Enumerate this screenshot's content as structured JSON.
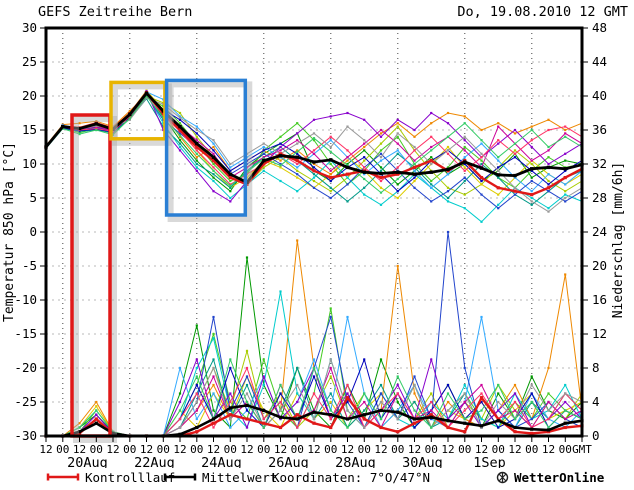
{
  "header": {
    "title": "GEFS Zeitreihe Bern",
    "datetime": "Do, 19.08.2010 12 GMT"
  },
  "footer": {
    "control_label": "Kontrolllauf",
    "mean_label": "Mittelwert",
    "coords_label": "Koordinaten: 7°O/47°N",
    "brand": "WetterOnline"
  },
  "chart_data": {
    "type": "line",
    "title": "GEFS Zeitreihe Bern",
    "subtitle": "Do, 19.08.2010 12 GMT",
    "ylabel_left": "Temperatur 850 hPa [°C]",
    "ylabel_right": "Niederschlag [mm/6h]",
    "ylim_left": [
      -30,
      30
    ],
    "ylim_right": [
      0,
      48
    ],
    "ytick_step_left": 5,
    "ytick_step_right": 4,
    "grid": "on",
    "legend_position": "bottom",
    "x_tick_labels": [
      "12",
      "00",
      "12",
      "00",
      "12",
      "00",
      "12",
      "00",
      "12",
      "00",
      "12",
      "00",
      "12",
      "00",
      "12",
      "00",
      "12",
      "00",
      "12",
      "00",
      "12",
      "00",
      "12",
      "00",
      "12",
      "00",
      "12",
      "00",
      "12",
      "00",
      "12",
      "00",
      "GMT"
    ],
    "day_labels": [
      {
        "label": "20Aug",
        "i": 2
      },
      {
        "label": "22Aug",
        "i": 6
      },
      {
        "label": "24Aug",
        "i": 10
      },
      {
        "label": "26Aug",
        "i": 14
      },
      {
        "label": "28Aug",
        "i": 18
      },
      {
        "label": "30Aug",
        "i": 22
      },
      {
        "label": "1Sep",
        "i": 26
      }
    ],
    "grid_v_idx": [
      1,
      5,
      9,
      13,
      17,
      21,
      25,
      29
    ],
    "colors": {
      "mean": "#000000",
      "control": "#e01818",
      "grid_h": "#b8b8b8",
      "grid_v": "#444444"
    },
    "highlight_boxes": [
      {
        "name": "highlight-box-red",
        "color": "#e01818",
        "x0": 1.55,
        "x1": 3.82,
        "t0": 17.2,
        "t1": -30
      },
      {
        "name": "highlight-box-yellow",
        "color": "#e8b400",
        "x0": 3.88,
        "x1": 7.1,
        "t0": 22.0,
        "t1": 13.7
      },
      {
        "name": "highlight-box-blue",
        "color": "#2a7fd4",
        "x0": 7.2,
        "x1": 11.9,
        "t0": 22.3,
        "t1": 2.5
      }
    ],
    "mean": {
      "temp": [
        12.5,
        15.5,
        15.2,
        15.9,
        15.1,
        17.3,
        20.4,
        17.8,
        15.5,
        13.0,
        11.0,
        8.5,
        7.3,
        10.5,
        11.2,
        11.0,
        10.3,
        10.6,
        9.5,
        8.8,
        8.6,
        8.8,
        8.5,
        8.8,
        9.2,
        10.3,
        9.4,
        8.4,
        8.3,
        9.3,
        9.5,
        9.3,
        9.9
      ],
      "precip": [
        0,
        0,
        0.5,
        1.5,
        0.3,
        0,
        0,
        0,
        0.2,
        1.0,
        2.0,
        3.3,
        3.6,
        3.0,
        2.2,
        2.0,
        2.8,
        2.5,
        2.0,
        2.5,
        3.0,
        2.8,
        2.0,
        2.2,
        1.8,
        1.5,
        1.2,
        1.8,
        1.0,
        0.8,
        0.7,
        1.5,
        1.8
      ]
    },
    "control": {
      "temp": [
        12.5,
        15.5,
        15.3,
        16.0,
        15.2,
        17.4,
        20.5,
        17.5,
        15.0,
        12.5,
        10.5,
        8.0,
        7.0,
        10.0,
        11.5,
        10.5,
        9.0,
        8.0,
        8.5,
        9.0,
        8.0,
        8.5,
        9.5,
        10.5,
        9.0,
        10.5,
        8.0,
        6.5,
        6.0,
        5.5,
        6.5,
        8.0,
        9.3
      ],
      "precip": [
        0,
        0,
        0.3,
        2.0,
        0.2,
        0,
        0,
        0,
        0,
        0.5,
        1.5,
        2.5,
        2.0,
        1.5,
        1.0,
        2.5,
        1.5,
        1.0,
        4.5,
        2.0,
        1.0,
        0.5,
        1.5,
        2.5,
        1.0,
        0.5,
        4.5,
        2.0,
        0.5,
        0.3,
        0.5,
        1.0,
        1.2
      ]
    },
    "members": [
      {
        "color": "#009900",
        "temp": [
          12.4,
          15.6,
          15.0,
          15.6,
          14.8,
          17.2,
          20.4,
          17.0,
          13.5,
          10.5,
          8.0,
          6.0,
          9.5,
          11.5,
          13.0,
          14.5,
          9.0,
          7.5,
          10.0,
          12.0,
          9.5,
          7.0,
          9.0,
          11.0,
          8.5,
          10.0,
          7.5,
          9.0,
          11.5,
          8.0,
          9.5,
          10.5,
          10.0
        ],
        "precip": [
          0,
          0,
          1,
          2.5,
          0.5,
          0,
          0,
          0,
          5,
          13,
          3,
          1,
          21,
          6,
          2,
          8,
          3,
          1,
          6,
          2,
          9,
          4,
          1,
          3,
          6,
          2,
          1,
          5,
          2,
          7,
          3,
          2,
          4
        ]
      },
      {
        "color": "#44cc22",
        "temp": [
          12.6,
          15.4,
          14.6,
          15.2,
          14.5,
          16.8,
          19.8,
          18.5,
          16.0,
          13.0,
          10.0,
          7.5,
          8.5,
          12.0,
          14.0,
          16.0,
          13.5,
          10.0,
          7.0,
          9.0,
          12.0,
          14.0,
          10.0,
          7.5,
          9.5,
          12.5,
          10.5,
          8.0,
          6.5,
          9.0,
          11.0,
          9.5,
          10.0
        ],
        "precip": [
          0,
          0,
          0.5,
          3,
          0.5,
          0,
          0,
          0,
          2,
          6,
          12,
          4,
          2,
          9,
          3,
          1,
          5,
          15,
          3,
          1,
          4,
          2,
          6,
          1,
          3,
          5,
          2,
          1,
          4,
          2,
          5,
          3,
          2
        ]
      },
      {
        "color": "#aacc00",
        "temp": [
          12.5,
          15.3,
          14.9,
          15.5,
          15.0,
          17.0,
          20.0,
          19.0,
          17.5,
          14.0,
          11.0,
          8.0,
          7.0,
          9.5,
          11.0,
          9.0,
          7.5,
          6.0,
          8.0,
          10.5,
          13.0,
          15.5,
          12.0,
          9.0,
          6.5,
          5.5,
          7.0,
          9.5,
          12.0,
          10.0,
          7.5,
          6.0,
          7.5
        ],
        "precip": [
          0,
          0,
          0.5,
          2,
          0.3,
          0,
          0,
          0,
          1,
          4,
          8,
          3,
          10,
          2,
          5,
          1,
          3,
          7,
          2,
          5,
          1,
          3,
          2,
          5,
          1,
          4,
          2,
          6,
          3,
          1,
          4,
          2,
          5
        ]
      },
      {
        "color": "#ddcc00",
        "temp": [
          12.4,
          15.5,
          15.2,
          16.0,
          15.3,
          17.5,
          20.8,
          18.0,
          15.0,
          12.0,
          9.0,
          6.5,
          8.0,
          10.5,
          9.5,
          8.0,
          6.5,
          8.5,
          11.0,
          9.0,
          6.5,
          5.0,
          7.5,
          10.0,
          12.5,
          9.5,
          7.0,
          5.5,
          8.0,
          10.5,
          8.5,
          7.0,
          8.5
        ],
        "precip": [
          0,
          0,
          1,
          3.5,
          0.5,
          0,
          0,
          0,
          3,
          1,
          5,
          2,
          7,
          3,
          1,
          5,
          2,
          4,
          1,
          3,
          5,
          2,
          4,
          1,
          3,
          2,
          4,
          1,
          3,
          5,
          2,
          3,
          4
        ]
      },
      {
        "color": "#ee8800",
        "temp": [
          12.7,
          15.8,
          16.0,
          16.3,
          15.5,
          17.8,
          20.2,
          17.5,
          14.0,
          11.0,
          12.5,
          9.0,
          10.5,
          12.0,
          10.5,
          12.0,
          10.0,
          8.5,
          10.5,
          12.5,
          14.5,
          16.0,
          14.0,
          16.0,
          17.5,
          17.0,
          15.0,
          16.0,
          14.5,
          15.5,
          16.5,
          15.0,
          16.0
        ],
        "precip": [
          0,
          0,
          1.5,
          4,
          0.5,
          0,
          0,
          0,
          1,
          3,
          6,
          2,
          4,
          1,
          3,
          23,
          8,
          2,
          5,
          1,
          3,
          20,
          5,
          1,
          4,
          2,
          1,
          3,
          6,
          2,
          8,
          19,
          3
        ]
      },
      {
        "color": "#00cccc",
        "temp": [
          12.5,
          15.4,
          15.1,
          15.3,
          14.9,
          17.0,
          20.3,
          16.0,
          12.5,
          9.5,
          7.5,
          5.0,
          7.0,
          9.0,
          7.5,
          6.0,
          8.0,
          10.5,
          8.0,
          5.5,
          4.0,
          6.0,
          8.5,
          6.5,
          4.5,
          3.5,
          1.5,
          4.0,
          6.5,
          5.0,
          3.5,
          5.5,
          4.5
        ],
        "precip": [
          0,
          0,
          0.5,
          2,
          0.3,
          0,
          0,
          0,
          2,
          8,
          11.5,
          3,
          1,
          6,
          17,
          5,
          2,
          9,
          3,
          1,
          5,
          2,
          1,
          4,
          2,
          6,
          2,
          1,
          5,
          2,
          3,
          6,
          2
        ]
      },
      {
        "color": "#009988",
        "temp": [
          12.3,
          15.2,
          14.8,
          15.0,
          14.6,
          16.6,
          19.6,
          15.5,
          13.0,
          10.0,
          8.5,
          6.5,
          9.0,
          11.0,
          12.5,
          10.5,
          8.5,
          6.5,
          4.5,
          6.5,
          9.0,
          11.5,
          9.5,
          7.0,
          5.0,
          7.5,
          10.0,
          8.0,
          5.5,
          4.0,
          6.0,
          8.0,
          9.0
        ],
        "precip": [
          0,
          0,
          0.5,
          1.5,
          0.2,
          0,
          0,
          0,
          1,
          5,
          9,
          2,
          6,
          1,
          3,
          8,
          2,
          5,
          1,
          3,
          6,
          2,
          4,
          1,
          2,
          5,
          1,
          3,
          1,
          4,
          2,
          5,
          3
        ]
      },
      {
        "color": "#33aaff",
        "temp": [
          12.6,
          15.7,
          15.3,
          15.8,
          15.1,
          17.3,
          20.6,
          19.5,
          17.0,
          15.5,
          13.0,
          9.5,
          11.0,
          12.5,
          11.0,
          9.5,
          11.5,
          13.5,
          11.0,
          8.5,
          10.5,
          12.0,
          9.0,
          6.5,
          8.5,
          11.0,
          13.0,
          10.5,
          8.0,
          6.0,
          8.5,
          7.0,
          9.0
        ],
        "precip": [
          0,
          0,
          1,
          3,
          0.5,
          0,
          0,
          0,
          8,
          2,
          5,
          1,
          3,
          7,
          2,
          4,
          9,
          3,
          14,
          5,
          1,
          3,
          6,
          2,
          1,
          4,
          14,
          3,
          1,
          5,
          2,
          1,
          3
        ]
      },
      {
        "color": "#2244cc",
        "temp": [
          12.5,
          15.5,
          15.0,
          15.4,
          14.8,
          17.1,
          20.1,
          16.5,
          14.5,
          12.5,
          10.5,
          8.5,
          10.0,
          11.5,
          10.0,
          8.5,
          6.5,
          5.0,
          7.0,
          9.5,
          11.5,
          9.0,
          6.5,
          4.5,
          6.0,
          8.0,
          5.5,
          3.5,
          5.5,
          7.5,
          6.0,
          4.5,
          6.0
        ],
        "precip": [
          0,
          0,
          0.5,
          2.5,
          0.3,
          0,
          0,
          0,
          1,
          4,
          14,
          3,
          7,
          2,
          4,
          1,
          8,
          14,
          4,
          1,
          5,
          2,
          7,
          2,
          24,
          8,
          1,
          3,
          1,
          2,
          4,
          2,
          1
        ]
      },
      {
        "color": "#0000bb",
        "temp": [
          12.4,
          15.3,
          14.9,
          15.1,
          14.7,
          16.9,
          19.9,
          18.0,
          16.5,
          14.5,
          12.0,
          9.0,
          10.5,
          12.0,
          13.0,
          11.5,
          9.5,
          7.5,
          9.5,
          11.0,
          8.5,
          6.0,
          8.0,
          10.5,
          12.0,
          10.0,
          7.5,
          9.5,
          11.0,
          9.0,
          7.0,
          9.0,
          10.5
        ],
        "precip": [
          0,
          0,
          0.5,
          2,
          0.2,
          0,
          0,
          0,
          2,
          6,
          2,
          8,
          3,
          1,
          5,
          2,
          7,
          2,
          4,
          9,
          2,
          5,
          1,
          3,
          6,
          2,
          4,
          1,
          2,
          5,
          1,
          3,
          2
        ]
      },
      {
        "color": "#8800cc",
        "temp": [
          12.5,
          15.6,
          15.2,
          15.7,
          15.0,
          17.4,
          20.7,
          15.0,
          12.0,
          9.0,
          6.0,
          4.5,
          7.5,
          10.0,
          12.5,
          14.5,
          16.5,
          17.0,
          17.5,
          16.5,
          14.0,
          16.5,
          15.0,
          17.5,
          16.0,
          13.5,
          11.0,
          13.0,
          15.0,
          12.5,
          10.0,
          11.5,
          13.0
        ],
        "precip": [
          0,
          0,
          0.5,
          2.5,
          0.3,
          0,
          0,
          0,
          4,
          9,
          2,
          5,
          1,
          7,
          2,
          4,
          8,
          2,
          5,
          1,
          3,
          6,
          2,
          9,
          2,
          4,
          1,
          3,
          5,
          1,
          2,
          4,
          2
        ]
      },
      {
        "color": "#cc0099",
        "temp": [
          12.6,
          15.5,
          15.1,
          15.5,
          14.9,
          17.2,
          20.4,
          17.8,
          15.5,
          13.5,
          11.5,
          8.0,
          9.5,
          11.0,
          12.0,
          13.5,
          11.5,
          9.0,
          11.0,
          13.0,
          15.0,
          13.0,
          10.5,
          12.5,
          14.0,
          12.0,
          9.5,
          15.5,
          13.0,
          10.5,
          12.0,
          14.5,
          13.0
        ],
        "precip": [
          0,
          0,
          0.5,
          1.5,
          0.2,
          0,
          0,
          0,
          1,
          3,
          7,
          2,
          4,
          1,
          6,
          2,
          3,
          8,
          2,
          4,
          1,
          5,
          2,
          3,
          1,
          4,
          6,
          2,
          3,
          1,
          4,
          2,
          3
        ]
      },
      {
        "color": "#ff3366",
        "temp": [
          12.4,
          15.4,
          15.0,
          15.2,
          14.8,
          17.0,
          20.2,
          17.2,
          14.8,
          12.0,
          9.5,
          7.0,
          8.5,
          10.0,
          11.5,
          10.0,
          12.0,
          14.0,
          12.0,
          9.5,
          7.5,
          9.5,
          12.0,
          14.0,
          11.5,
          9.0,
          11.0,
          13.5,
          11.5,
          13.5,
          15.0,
          15.5,
          14.0
        ],
        "precip": [
          0,
          0,
          0.5,
          2,
          0.3,
          0,
          0,
          0,
          2,
          5,
          1,
          4,
          8,
          2,
          4,
          1,
          5,
          2,
          6,
          1,
          3,
          5,
          2,
          4,
          1,
          3,
          5,
          2,
          4,
          1,
          2,
          5,
          3
        ]
      },
      {
        "color": "#999999",
        "temp": [
          12.5,
          15.6,
          15.1,
          15.6,
          15.4,
          16.5,
          19.7,
          18.8,
          16.8,
          15.0,
          13.5,
          10.0,
          11.5,
          13.0,
          11.5,
          13.0,
          14.5,
          12.5,
          15.5,
          13.5,
          11.0,
          14.5,
          12.5,
          10.0,
          12.0,
          14.0,
          11.5,
          9.0,
          6.5,
          4.5,
          3.0,
          5.0,
          6.5
        ],
        "precip": [
          0,
          0,
          0.5,
          2,
          0.3,
          0,
          0,
          0,
          1,
          4,
          8,
          2,
          5,
          1,
          3,
          6,
          2,
          9,
          3,
          1,
          4,
          2,
          6,
          1,
          3,
          5,
          1,
          4,
          2,
          6,
          3,
          5,
          4
        ]
      },
      {
        "color": "#33cc66",
        "temp": [
          12.5,
          15.2,
          14.4,
          15.0,
          14.3,
          16.7,
          20.0,
          16.8,
          14.2,
          11.5,
          9.0,
          6.8,
          8.8,
          10.8,
          9.8,
          11.8,
          13.8,
          11.8,
          9.8,
          7.8,
          5.8,
          7.8,
          10.0,
          12.0,
          14.0,
          16.0,
          13.5,
          11.0,
          13.0,
          15.0,
          12.5,
          14.0,
          12.5
        ],
        "precip": [
          0,
          0,
          1,
          3,
          0.5,
          0,
          0,
          0,
          3,
          7,
          2,
          9,
          4,
          1,
          6,
          2,
          8,
          3,
          1,
          5,
          2,
          7,
          3,
          1,
          5,
          2,
          3,
          6,
          2,
          4,
          1,
          3,
          2
        ]
      }
    ]
  }
}
